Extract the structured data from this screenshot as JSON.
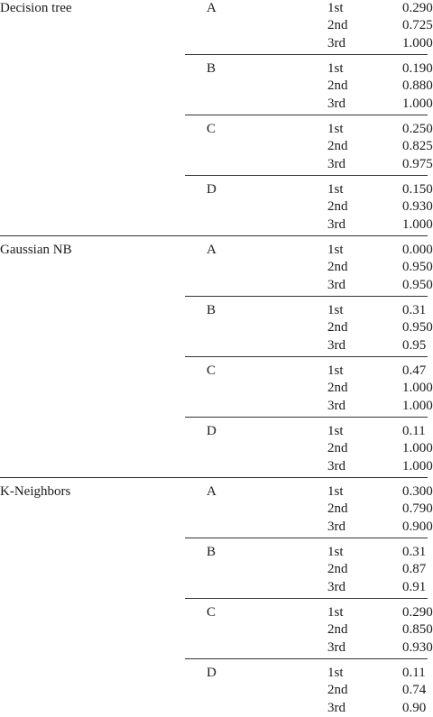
{
  "models": [
    {
      "name": "Decision tree",
      "groups": [
        {
          "label": "A",
          "rows": [
            {
              "rank": "1st",
              "value": "0.290"
            },
            {
              "rank": "2nd",
              "value": "0.725"
            },
            {
              "rank": "3rd",
              "value": "1.000"
            }
          ]
        },
        {
          "label": "B",
          "rows": [
            {
              "rank": "1st",
              "value": "0.190"
            },
            {
              "rank": "2nd",
              "value": "0.880"
            },
            {
              "rank": "3rd",
              "value": "1.000"
            }
          ]
        },
        {
          "label": "C",
          "rows": [
            {
              "rank": "1st",
              "value": "0.250"
            },
            {
              "rank": "2nd",
              "value": "0.825"
            },
            {
              "rank": "3rd",
              "value": "0.975"
            }
          ]
        },
        {
          "label": "D",
          "rows": [
            {
              "rank": "1st",
              "value": "0.150"
            },
            {
              "rank": "2nd",
              "value": "0.930"
            },
            {
              "rank": "3rd",
              "value": "1.000"
            }
          ]
        }
      ]
    },
    {
      "name": "Gaussian NB",
      "groups": [
        {
          "label": "A",
          "rows": [
            {
              "rank": "1st",
              "value": "0.000"
            },
            {
              "rank": "2nd",
              "value": "0.950"
            },
            {
              "rank": "3rd",
              "value": "0.950"
            }
          ]
        },
        {
          "label": "B",
          "rows": [
            {
              "rank": "1st",
              "value": "0.31"
            },
            {
              "rank": "2nd",
              "value": "0.950"
            },
            {
              "rank": "3rd",
              "value": "0.95"
            }
          ]
        },
        {
          "label": "C",
          "rows": [
            {
              "rank": "1st",
              "value": "0.47"
            },
            {
              "rank": "2nd",
              "value": "1.000"
            },
            {
              "rank": "3rd",
              "value": "1.000"
            }
          ]
        },
        {
          "label": "D",
          "rows": [
            {
              "rank": "1st",
              "value": "0.11"
            },
            {
              "rank": "2nd",
              "value": "1.000"
            },
            {
              "rank": "3rd",
              "value": "1.000"
            }
          ]
        }
      ]
    },
    {
      "name": "K-Neighbors",
      "groups": [
        {
          "label": "A",
          "rows": [
            {
              "rank": "1st",
              "value": "0.300"
            },
            {
              "rank": "2nd",
              "value": "0.790"
            },
            {
              "rank": "3rd",
              "value": "0.900"
            }
          ]
        },
        {
          "label": "B",
          "rows": [
            {
              "rank": "1st",
              "value": "0.31"
            },
            {
              "rank": "2nd",
              "value": "0.87"
            },
            {
              "rank": "3rd",
              "value": "0.91"
            }
          ]
        },
        {
          "label": "C",
          "rows": [
            {
              "rank": "1st",
              "value": "0.290"
            },
            {
              "rank": "2nd",
              "value": "0.850"
            },
            {
              "rank": "3rd",
              "value": "0.930"
            }
          ]
        },
        {
          "label": "D",
          "rows": [
            {
              "rank": "1st",
              "value": "0.11"
            },
            {
              "rank": "2nd",
              "value": "0.74"
            },
            {
              "rank": "3rd",
              "value": "0.90"
            }
          ]
        }
      ]
    }
  ]
}
